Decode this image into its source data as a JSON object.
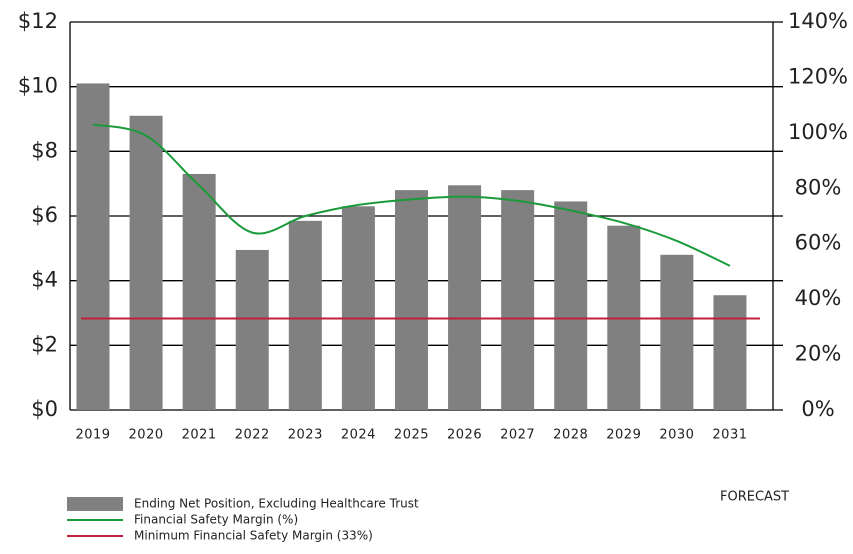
{
  "chart_data": {
    "type": "bar",
    "categories": [
      "2019",
      "2020",
      "2021",
      "2022",
      "2023",
      "2024",
      "2025",
      "2026",
      "2027",
      "2028",
      "2029",
      "2030",
      "2031"
    ],
    "series": [
      {
        "name": "Ending Net Position, Excluding Healthcare Trust",
        "type": "bar",
        "color": "#808080",
        "values": [
          10.1,
          9.1,
          7.3,
          4.95,
          5.85,
          6.3,
          6.8,
          6.95,
          6.8,
          6.45,
          5.7,
          4.8,
          3.55
        ]
      },
      {
        "name": "Financial Safety Margin (%)",
        "type": "line",
        "axis": "y2",
        "color": "#1a9a3a",
        "values": [
          103,
          99,
          81,
          64,
          70,
          74,
          76,
          77,
          75.5,
          72,
          67.5,
          61,
          52
        ]
      },
      {
        "name": "Minimum Financial Safety Margin (33%)",
        "type": "line",
        "axis": "y2",
        "color": "#c0203a",
        "values": [
          33,
          33,
          33,
          33,
          33,
          33,
          33,
          33,
          33,
          33,
          33,
          33,
          33
        ]
      }
    ],
    "ylim": [
      0,
      12
    ],
    "yticks": [
      {
        "value": 0,
        "label": "$0"
      },
      {
        "value": 2,
        "label": "$2"
      },
      {
        "value": 4,
        "label": "$4"
      },
      {
        "value": 6,
        "label": "$6"
      },
      {
        "value": 8,
        "label": "$8"
      },
      {
        "value": 10,
        "label": "$10"
      },
      {
        "value": 12,
        "label": "$12"
      }
    ],
    "y2lim": [
      0,
      140
    ],
    "y2ticks": [
      {
        "value": 0,
        "label": "0%"
      },
      {
        "value": 20,
        "label": "20%"
      },
      {
        "value": 40,
        "label": "40%"
      },
      {
        "value": 60,
        "label": "60%"
      },
      {
        "value": 80,
        "label": "80%"
      },
      {
        "value": 100,
        "label": "100%"
      },
      {
        "value": 120,
        "label": "120%"
      },
      {
        "value": 140,
        "label": "140%"
      }
    ],
    "grid": true,
    "annotation": "FORECAST"
  }
}
